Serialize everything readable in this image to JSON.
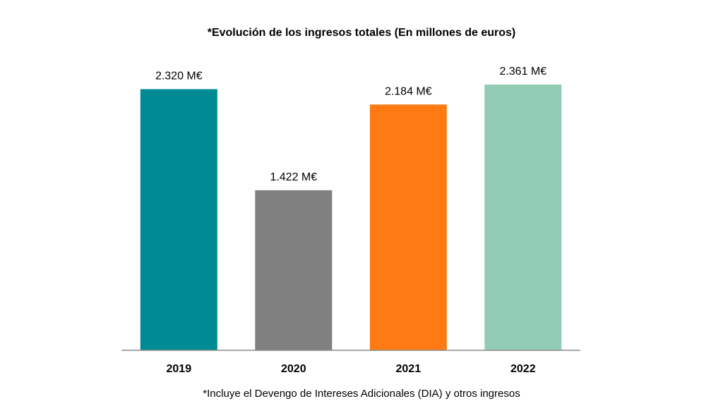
{
  "chart_data": {
    "type": "bar",
    "title": "*Evolución de los ingresos totales (En millones de euros)",
    "categories": [
      "2019",
      "2020",
      "2021",
      "2022"
    ],
    "values": [
      2320,
      1422,
      2184,
      2361
    ],
    "data_labels": [
      "2.320 M€",
      "1.422 M€",
      "2.184 M€",
      "2.361 M€"
    ],
    "colors": [
      "#008A93",
      "#808080",
      "#FF7A12",
      "#92CCB5"
    ],
    "xlabel": "",
    "ylabel": "",
    "ylim": [
      0,
      2361
    ],
    "grid": false,
    "legend": "none",
    "footnote": "*Incluye el Devengo de Intereses Adicionales (DIA) y otros ingresos"
  }
}
